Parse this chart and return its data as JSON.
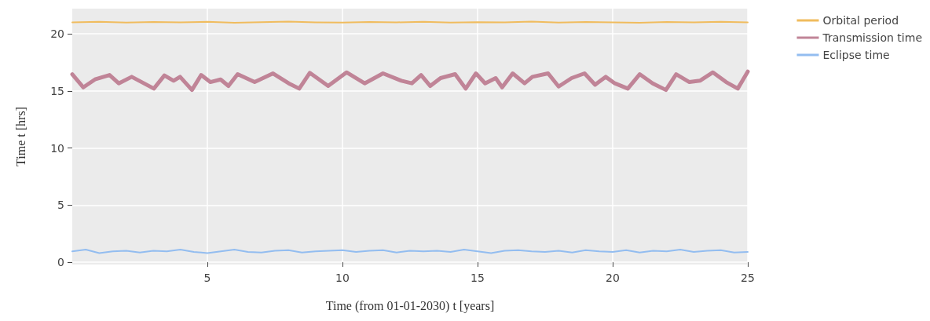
{
  "chart_data": {
    "type": "line",
    "xlabel": "Time (from 01-01-2030) t [years]",
    "ylabel": "Time t [hrs]",
    "xlim": [
      0,
      25
    ],
    "xticks": [
      5,
      10,
      15,
      20,
      25
    ],
    "ylim": [
      -0.2,
      22.2
    ],
    "yticks": [
      0,
      5,
      10,
      15,
      20
    ],
    "grid": true,
    "legend": "top right",
    "marker": "none",
    "line_style": "solid",
    "series": [
      {
        "name": "Orbital period",
        "color": "#f0bc5e",
        "x": [
          0,
          1,
          2,
          3,
          4,
          5,
          6,
          7,
          8,
          9,
          10,
          11,
          12,
          13,
          14,
          15,
          16,
          17,
          18,
          19,
          20,
          21,
          22,
          23,
          24,
          25
        ],
        "values": [
          21.0,
          21.05,
          20.98,
          21.03,
          21.0,
          21.05,
          20.97,
          21.02,
          21.06,
          21.0,
          20.98,
          21.04,
          21.0,
          21.05,
          20.98,
          21.02,
          21.0,
          21.06,
          20.98,
          21.03,
          21.0,
          20.96,
          21.04,
          21.0,
          21.05,
          21.0
        ]
      },
      {
        "name": "Transmission time",
        "color": "#c08497",
        "x": [
          0,
          0.41,
          0.84,
          1.38,
          1.72,
          2.2,
          3.02,
          3.41,
          3.75,
          3.99,
          4.43,
          4.77,
          5.11,
          5.49,
          5.78,
          6.12,
          6.75,
          7.43,
          8.01,
          8.4,
          8.79,
          9.47,
          10.15,
          10.82,
          11.5,
          12.18,
          12.57,
          12.91,
          13.25,
          13.63,
          14.17,
          14.56,
          14.94,
          15.28,
          15.67,
          15.91,
          16.3,
          16.74,
          17.03,
          17.61,
          18.0,
          18.48,
          18.96,
          19.35,
          19.74,
          20.08,
          20.56,
          21.0,
          21.48,
          21.97,
          22.35,
          22.84,
          23.23,
          23.71,
          24.2,
          24.63,
          25
        ],
        "values": [
          16.46,
          15.31,
          16.0,
          16.39,
          15.66,
          16.23,
          15.2,
          16.35,
          15.89,
          16.23,
          15.08,
          16.39,
          15.77,
          16.0,
          15.43,
          16.46,
          15.77,
          16.53,
          15.66,
          15.2,
          16.58,
          15.43,
          16.62,
          15.66,
          16.53,
          15.89,
          15.66,
          16.39,
          15.43,
          16.12,
          16.46,
          15.2,
          16.53,
          15.66,
          16.12,
          15.31,
          16.53,
          15.66,
          16.23,
          16.53,
          15.38,
          16.12,
          16.53,
          15.54,
          16.23,
          15.66,
          15.2,
          16.46,
          15.66,
          15.08,
          16.46,
          15.77,
          15.89,
          16.62,
          15.77,
          15.2,
          16.69
        ]
      },
      {
        "name": "Eclipse time",
        "color": "#93bdf0",
        "x": [
          0,
          0.5,
          1,
          1.5,
          2,
          2.5,
          3,
          3.5,
          4,
          4.5,
          5,
          5.5,
          6,
          6.5,
          7,
          7.5,
          8,
          8.5,
          9,
          9.5,
          10,
          10.5,
          11,
          11.5,
          12,
          12.5,
          13,
          13.5,
          14,
          14.5,
          15,
          15.5,
          16,
          16.5,
          17,
          17.5,
          18,
          18.5,
          19,
          19.5,
          20,
          20.5,
          21,
          21.5,
          22,
          22.5,
          23,
          23.5,
          24,
          24.5,
          25
        ],
        "values": [
          0.95,
          1.1,
          0.8,
          0.95,
          1.0,
          0.85,
          1.0,
          0.95,
          1.1,
          0.9,
          0.8,
          0.95,
          1.1,
          0.9,
          0.85,
          1.0,
          1.05,
          0.85,
          0.95,
          1.0,
          1.05,
          0.9,
          1.0,
          1.05,
          0.85,
          1.0,
          0.95,
          1.0,
          0.9,
          1.1,
          0.95,
          0.8,
          1.0,
          1.05,
          0.95,
          0.9,
          1.0,
          0.85,
          1.05,
          0.95,
          0.9,
          1.05,
          0.85,
          1.0,
          0.95,
          1.1,
          0.9,
          1.0,
          1.05,
          0.85,
          0.9
        ]
      }
    ]
  }
}
